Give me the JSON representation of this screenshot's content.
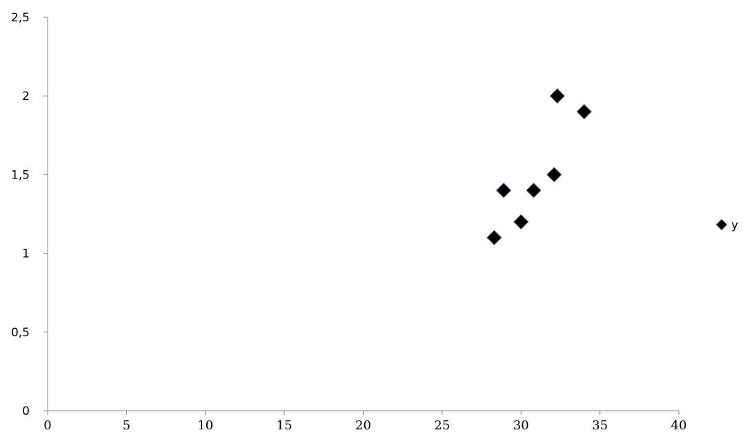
{
  "chart_data": {
    "type": "scatter",
    "title": "",
    "xlabel": "",
    "ylabel": "",
    "xlim": [
      0,
      40
    ],
    "ylim": [
      0,
      2.5
    ],
    "x_ticks": [
      0,
      5,
      10,
      15,
      20,
      25,
      30,
      35,
      40
    ],
    "y_ticks": [
      0,
      0.5,
      1,
      1.5,
      2,
      2.5
    ],
    "x_tick_labels": [
      "0",
      "5",
      "10",
      "15",
      "20",
      "25",
      "30",
      "35",
      "40"
    ],
    "y_tick_labels": [
      "0",
      "0,5",
      "1",
      "1,5",
      "2",
      "2,5"
    ],
    "grid": false,
    "legend": {
      "position": "right",
      "entries": [
        "y"
      ]
    },
    "series": [
      {
        "name": "y",
        "marker": "diamond",
        "color": "#000000",
        "x": [
          28.3,
          28.9,
          30.0,
          30.8,
          32.1,
          32.3,
          34.0
        ],
        "y": [
          1.1,
          1.4,
          1.2,
          1.4,
          1.5,
          2.0,
          1.9
        ]
      }
    ]
  }
}
